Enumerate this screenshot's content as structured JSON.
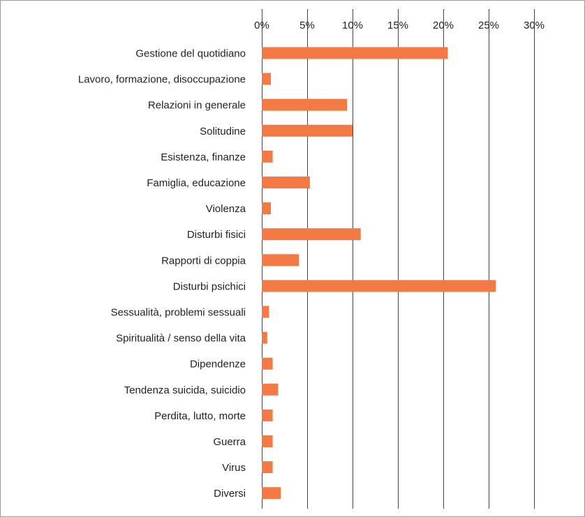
{
  "chart_data": {
    "type": "bar",
    "orientation": "horizontal",
    "title": "",
    "xlabel": "",
    "ylabel": "",
    "xlim": [
      0,
      30
    ],
    "ticks": [
      "0%",
      "5%",
      "10%",
      "15%",
      "20%",
      "25%",
      "30%"
    ],
    "tick_values": [
      0,
      5,
      10,
      15,
      20,
      25,
      30
    ],
    "grid": true,
    "bar_color": "#f37a45",
    "categories": [
      "Gestione del quotidiano",
      "Lavoro, formazione, disoccupazione",
      "Relazioni in generale",
      "Solitudine",
      "Esistenza, finanze",
      "Famiglia, educazione",
      "Violenza",
      "Disturbi fisici",
      "Rapporti di coppia",
      "Disturbi psichici",
      "Sessualità, problemi sessuali",
      "Spiritualità / senso della vita",
      "Dipendenze",
      "Tendenza suicida, suicidio",
      "Perdita, lutto, morte",
      "Guerra",
      "Virus",
      "Diversi"
    ],
    "values": [
      20.5,
      1.0,
      9.4,
      10.0,
      1.2,
      5.3,
      1.0,
      10.9,
      4.1,
      25.8,
      0.8,
      0.6,
      1.2,
      1.8,
      1.2,
      1.2,
      1.2,
      2.1
    ]
  }
}
